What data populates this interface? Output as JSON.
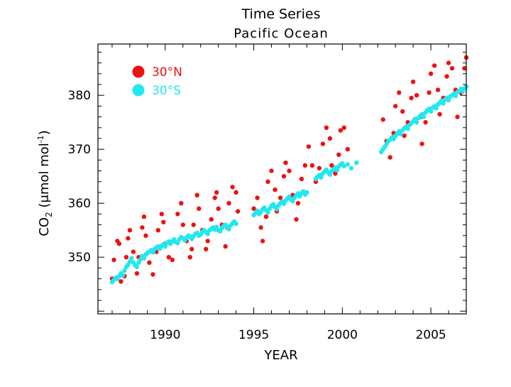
{
  "colors": {
    "north": "#ee1111",
    "south": "#22e8ee",
    "axis": "#000000"
  },
  "chart_data": {
    "type": "scatter",
    "title": "Time Series",
    "subtitle": "Pacific Ocean",
    "xlabel": "YEAR",
    "ylabel_main": "CO",
    "ylabel_sub": "2",
    "ylabel_unit": " (μmol mol",
    "ylabel_exp": "-1",
    "ylabel_close": ")",
    "xlim": [
      1986.2,
      2007.0
    ],
    "ylim": [
      339.5,
      389.5
    ],
    "xticks": [
      1990,
      1995,
      2000,
      2005
    ],
    "xtick_labels": [
      "1990",
      "1995",
      "2000",
      "2005"
    ],
    "yticks": [
      350,
      360,
      370,
      380
    ],
    "ytick_labels": [
      "350",
      "360",
      "370",
      "380"
    ],
    "legend": [
      {
        "label": "30°N",
        "color": "#ee1111"
      },
      {
        "label": "30°S",
        "color": "#22e8ee"
      }
    ],
    "series": [
      {
        "name": "30°N",
        "x": [
          1987.0,
          1987.1,
          1987.3,
          1987.4,
          1987.5,
          1987.7,
          1987.8,
          1987.9,
          1988.0,
          1988.2,
          1988.4,
          1988.5,
          1988.7,
          1988.8,
          1988.9,
          1989.1,
          1989.3,
          1989.5,
          1989.6,
          1989.8,
          1989.9,
          1990.0,
          1990.2,
          1990.4,
          1990.5,
          1990.7,
          1990.9,
          1991.0,
          1991.2,
          1991.4,
          1991.5,
          1991.6,
          1991.8,
          1991.9,
          1992.1,
          1992.3,
          1992.4,
          1992.6,
          1992.8,
          1992.9,
          1993.0,
          1993.2,
          1993.4,
          1993.5,
          1993.6,
          1993.8,
          1994.0,
          1994.1,
          1995.0,
          1995.2,
          1995.4,
          1995.5,
          1995.7,
          1995.8,
          1996.0,
          1996.2,
          1996.3,
          1996.5,
          1996.7,
          1996.8,
          1997.0,
          1997.2,
          1997.4,
          1997.5,
          1997.7,
          1997.9,
          1998.1,
          1998.3,
          1998.5,
          1998.7,
          1998.9,
          1999.1,
          1999.3,
          1999.4,
          1999.6,
          1999.8,
          1999.9,
          2000.1,
          2000.3,
          2002.3,
          2002.5,
          2002.7,
          2002.9,
          2003.0,
          2003.2,
          2003.4,
          2003.5,
          2003.7,
          2003.9,
          2004.0,
          2004.2,
          2004.4,
          2004.5,
          2004.7,
          2004.9,
          2005.0,
          2005.2,
          2005.4,
          2005.5,
          2005.7,
          2005.9,
          2006.0,
          2006.2,
          2006.4,
          2006.5,
          2006.7,
          2006.9,
          2007.0
        ],
        "y": [
          346.0,
          349.5,
          353.0,
          352.5,
          345.5,
          346.5,
          350.0,
          353.5,
          355.0,
          351.0,
          347.0,
          350.0,
          355.5,
          357.5,
          354.0,
          349.0,
          346.8,
          351.0,
          355.0,
          358.0,
          356.5,
          352.5,
          350.0,
          349.5,
          353.0,
          358.0,
          360.0,
          356.0,
          353.0,
          350.0,
          351.5,
          356.0,
          361.5,
          359.0,
          355.0,
          351.5,
          353.0,
          357.0,
          361.0,
          362.0,
          359.0,
          356.0,
          352.0,
          355.5,
          360.0,
          363.0,
          362.0,
          358.5,
          359.0,
          361.0,
          355.5,
          353.0,
          357.5,
          364.0,
          366.0,
          362.5,
          358.5,
          361.0,
          365.0,
          367.5,
          366.0,
          361.5,
          357.0,
          360.0,
          364.5,
          367.0,
          370.5,
          367.0,
          364.0,
          366.5,
          371.0,
          374.0,
          372.0,
          367.0,
          365.5,
          369.0,
          373.5,
          374.0,
          370.0,
          375.5,
          371.5,
          368.5,
          373.0,
          378.0,
          380.5,
          377.0,
          372.5,
          375.0,
          379.5,
          382.5,
          380.0,
          376.0,
          371.0,
          375.0,
          380.5,
          384.0,
          385.5,
          381.0,
          376.5,
          379.5,
          383.5,
          386.0,
          385.0,
          381.0,
          376.0,
          380.5,
          385.0,
          387.0
        ]
      },
      {
        "name": "30°S",
        "x": [
          1987.0,
          1987.1,
          1987.2,
          1987.3,
          1987.4,
          1987.5,
          1987.6,
          1987.7,
          1987.8,
          1987.9,
          1988.0,
          1988.1,
          1988.2,
          1988.3,
          1988.4,
          1988.5,
          1988.6,
          1988.7,
          1988.8,
          1988.9,
          1989.0,
          1989.1,
          1989.2,
          1989.3,
          1989.4,
          1989.5,
          1989.6,
          1989.7,
          1989.8,
          1989.9,
          1990.0,
          1990.1,
          1990.2,
          1990.3,
          1990.4,
          1990.5,
          1990.6,
          1990.7,
          1990.8,
          1990.9,
          1991.0,
          1991.1,
          1991.2,
          1991.3,
          1991.4,
          1991.5,
          1991.6,
          1991.7,
          1991.8,
          1991.9,
          1992.0,
          1992.1,
          1992.2,
          1992.3,
          1992.4,
          1992.5,
          1992.6,
          1992.7,
          1992.8,
          1992.9,
          1993.0,
          1993.1,
          1993.2,
          1993.3,
          1993.4,
          1993.5,
          1993.6,
          1993.7,
          1993.8,
          1993.9,
          1994.0,
          1995.0,
          1995.1,
          1995.2,
          1995.3,
          1995.4,
          1995.5,
          1995.6,
          1995.7,
          1995.8,
          1995.9,
          1996.0,
          1996.1,
          1996.2,
          1996.3,
          1996.4,
          1996.5,
          1996.6,
          1996.7,
          1996.8,
          1996.9,
          1997.0,
          1997.1,
          1997.2,
          1997.3,
          1997.4,
          1997.5,
          1997.6,
          1997.7,
          1997.8,
          1997.9,
          1998.0,
          1998.5,
          1998.6,
          1998.7,
          1998.8,
          1998.9,
          1999.0,
          1999.1,
          1999.2,
          1999.3,
          1999.4,
          1999.5,
          1999.6,
          1999.7,
          1999.8,
          1999.9,
          2000.0,
          2000.1,
          2000.3,
          2000.5,
          2000.8,
          2002.2,
          2002.3,
          2002.4,
          2002.5,
          2002.6,
          2002.7,
          2002.8,
          2002.9,
          2003.0,
          2003.1,
          2003.2,
          2003.3,
          2003.4,
          2003.5,
          2003.6,
          2003.7,
          2003.8,
          2003.9,
          2004.0,
          2004.1,
          2004.2,
          2004.3,
          2004.4,
          2004.5,
          2004.6,
          2004.7,
          2004.8,
          2004.9,
          2005.0,
          2005.1,
          2005.2,
          2005.3,
          2005.4,
          2005.5,
          2005.6,
          2005.7,
          2005.8,
          2005.9,
          2006.0,
          2006.1,
          2006.2,
          2006.3,
          2006.4,
          2006.5,
          2006.6,
          2006.7,
          2006.8,
          2006.9,
          2007.0
        ],
        "y": [
          345.4,
          345.8,
          346.2,
          346.0,
          346.5,
          347.0,
          346.6,
          347.5,
          348.2,
          348.6,
          349.2,
          349.8,
          349.0,
          348.5,
          348.2,
          349.0,
          349.6,
          350.2,
          349.8,
          350.5,
          350.8,
          351.0,
          351.3,
          350.9,
          351.5,
          351.8,
          352.0,
          351.6,
          352.1,
          352.4,
          352.0,
          352.6,
          352.9,
          352.5,
          353.0,
          353.3,
          352.8,
          352.6,
          353.3,
          353.7,
          353.5,
          353.1,
          353.6,
          354.0,
          353.8,
          353.4,
          353.9,
          354.3,
          354.5,
          354.0,
          354.2,
          354.7,
          355.0,
          354.6,
          354.3,
          355.0,
          355.2,
          355.5,
          355.1,
          355.6,
          355.0,
          354.8,
          355.4,
          355.8,
          356.0,
          355.6,
          355.2,
          355.9,
          356.3,
          356.6,
          356.2,
          357.8,
          358.2,
          358.6,
          358.0,
          358.4,
          358.9,
          359.2,
          358.7,
          358.3,
          359.0,
          359.5,
          359.8,
          359.3,
          358.9,
          359.6,
          360.0,
          360.3,
          359.9,
          360.5,
          360.9,
          361.2,
          360.7,
          360.4,
          361.0,
          361.5,
          361.8,
          361.3,
          361.9,
          362.2,
          361.6,
          362.0,
          364.5,
          364.9,
          365.2,
          364.8,
          365.5,
          365.9,
          366.2,
          365.7,
          365.3,
          366.0,
          366.3,
          366.6,
          366.1,
          366.8,
          367.1,
          367.4,
          366.9,
          367.2,
          366.5,
          367.5,
          369.5,
          370.0,
          370.5,
          371.0,
          371.5,
          371.8,
          372.2,
          371.9,
          372.5,
          372.9,
          373.3,
          372.8,
          373.5,
          373.9,
          374.2,
          373.8,
          374.5,
          374.8,
          375.2,
          375.6,
          375.0,
          375.8,
          376.2,
          376.5,
          376.0,
          376.8,
          377.2,
          377.5,
          377.0,
          377.7,
          378.0,
          377.6,
          378.3,
          378.6,
          379.0,
          378.5,
          379.2,
          379.5,
          379.1,
          379.8,
          380.0,
          380.3,
          379.9,
          380.6,
          380.8,
          381.2,
          380.7,
          381.3,
          381.6
        ]
      }
    ]
  }
}
